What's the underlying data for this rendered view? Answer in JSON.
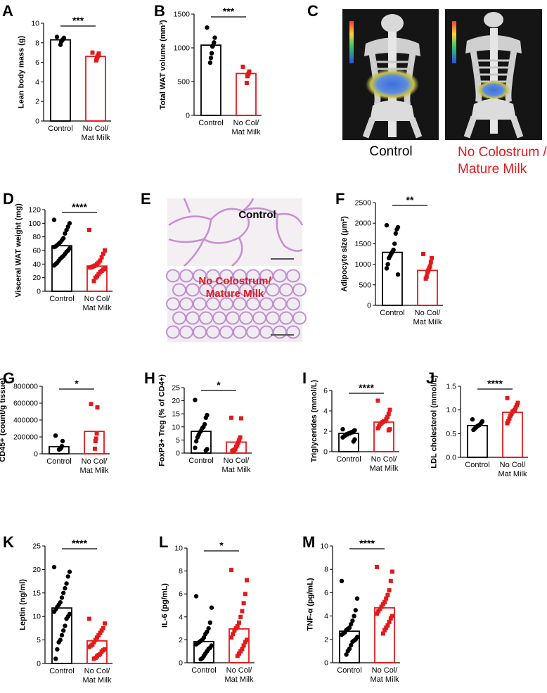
{
  "colors": {
    "control": "#000000",
    "treated": "#e31a1c"
  },
  "panel_c": {
    "letter": "C",
    "control_caption": "Control",
    "treated_caption": [
      "No Colostrum /",
      "Mature Milk"
    ]
  },
  "panel_e": {
    "letter": "E",
    "control_label": "Control",
    "treated_label": [
      "No Colostrum/",
      "Mature Milk"
    ]
  },
  "chart_data": [
    {
      "id": "A",
      "letter": "A",
      "type": "bar",
      "categories": [
        [
          "Control"
        ],
        [
          "No Col/",
          "Mat Milk"
        ]
      ],
      "ylabel": "Lean body mass  (g)",
      "ylim": [
        0,
        10
      ],
      "yticks": [
        0,
        2,
        4,
        6,
        8,
        10
      ],
      "tick_labels": [
        "0",
        "2",
        "4",
        "6",
        "8",
        "10"
      ],
      "means": [
        8.3,
        6.6
      ],
      "significance": "***",
      "points": [
        [
          8.6,
          8.5,
          8.4,
          8.3,
          8.2,
          8.1,
          7.8
        ],
        [
          7.0,
          6.9,
          6.7,
          6.6,
          6.4,
          6.2
        ]
      ],
      "markers": [
        "circle",
        "square"
      ]
    },
    {
      "id": "B",
      "letter": "B",
      "type": "bar",
      "categories": [
        [
          "Control"
        ],
        [
          "No Col/",
          "Mat Milk"
        ]
      ],
      "ylabel": "Total WAT volume  (mm³)",
      "ylim": [
        0,
        1500
      ],
      "yticks": [
        0,
        500,
        1000,
        1500
      ],
      "tick_labels": [
        "0",
        "500",
        "1000",
        "1500"
      ],
      "means": [
        1040,
        620
      ],
      "significance": "***",
      "points": [
        [
          1300,
          1150,
          1080,
          1040,
          1020,
          920,
          850,
          780
        ],
        [
          720,
          650,
          620,
          600,
          580,
          480
        ]
      ],
      "markers": [
        "circle",
        "square"
      ]
    },
    {
      "id": "D",
      "letter": "D",
      "type": "bar",
      "categories": [
        [
          "Control"
        ],
        [
          "No Col/",
          "Mat Milk"
        ]
      ],
      "ylabel": "Visceral WAT weight (mg)",
      "ylim": [
        0,
        120
      ],
      "yticks": [
        0,
        20,
        40,
        60,
        80,
        100,
        120
      ],
      "tick_labels": [
        "0",
        "20",
        "40",
        "60",
        "80",
        "100",
        "120"
      ],
      "means": [
        67,
        37
      ],
      "significance": "****",
      "points": [
        [
          105,
          100,
          95,
          90,
          85,
          78,
          75,
          72,
          70,
          68,
          66,
          65,
          63,
          60,
          58,
          55,
          52,
          50,
          48,
          45,
          42,
          40,
          38
        ],
        [
          90,
          60,
          55,
          50,
          45,
          42,
          40,
          38,
          37,
          36,
          35,
          35,
          33,
          32,
          30,
          28,
          25,
          22,
          20,
          15
        ]
      ],
      "markers": [
        "circle",
        "square"
      ]
    },
    {
      "id": "F",
      "letter": "F",
      "type": "bar",
      "categories": [
        [
          "Control"
        ],
        [
          "No Col/",
          "Mat Milk"
        ]
      ],
      "ylabel": "Adipocyte size (μm²)",
      "ylim": [
        0,
        2500
      ],
      "yticks": [
        0,
        500,
        1000,
        1500,
        2000,
        2500
      ],
      "tick_labels": [
        "0",
        "500",
        "1000",
        "1500",
        "2000",
        "2500"
      ],
      "means": [
        1290,
        850
      ],
      "significance": "**",
      "points": [
        [
          1950,
          1900,
          1850,
          1750,
          1500,
          1350,
          1300,
          1250,
          1200,
          1150,
          1000,
          900,
          750
        ],
        [
          1250,
          1150,
          1050,
          950,
          900,
          850,
          800,
          700,
          650
        ]
      ],
      "markers": [
        "circle",
        "square"
      ]
    },
    {
      "id": "G",
      "letter": "G",
      "type": "bar",
      "categories": [
        [
          "Control"
        ],
        [
          "No Col/",
          "Mat Milk"
        ]
      ],
      "ylabel": "CD45+ (count/g tissue)",
      "ylim": [
        0,
        800000
      ],
      "yticks": [
        0,
        200000,
        400000,
        600000,
        800000
      ],
      "tick_labels": [
        "0",
        "200000",
        "400000",
        "600000",
        "800000"
      ],
      "means": [
        85000,
        265000
      ],
      "significance": "*",
      "points": [
        [
          215000,
          150000,
          90000,
          70000,
          60000,
          55000,
          50000
        ],
        [
          590000,
          550000,
          240000,
          180000,
          150000,
          60000
        ]
      ],
      "markers": [
        "circle",
        "square"
      ]
    },
    {
      "id": "H",
      "letter": "H",
      "type": "bar",
      "categories": [
        [
          "Control"
        ],
        [
          "No Col/",
          "Mat Milk"
        ]
      ],
      "ylabel": "FoxP3+ Treg (% of CD4+)",
      "ylim": [
        0,
        25
      ],
      "yticks": [
        0,
        5,
        10,
        15,
        20,
        25
      ],
      "tick_labels": [
        "0",
        "5",
        "10",
        "15",
        "20",
        "25"
      ],
      "means": [
        8.3,
        4.2
      ],
      "significance": "*",
      "points": [
        [
          20.3,
          14.5,
          13.5,
          11,
          10,
          9.5,
          8.5,
          8,
          7,
          6,
          4.5,
          2,
          1.5,
          1
        ],
        [
          13.5,
          13.3,
          6,
          5,
          4,
          3,
          2.5,
          1.5,
          1.2,
          1,
          0.8
        ]
      ],
      "markers": [
        "circle",
        "square"
      ]
    },
    {
      "id": "I",
      "letter": "I",
      "type": "bar",
      "categories": [
        [
          "Control"
        ],
        [
          "No Col/",
          "Mat Milk"
        ]
      ],
      "ylabel": "Triglycerides (mmol/L)",
      "ylim": [
        0,
        6
      ],
      "yticks": [
        0,
        2,
        4,
        6
      ],
      "tick_labels": [
        "0",
        "2",
        "4",
        "6"
      ],
      "means": [
        1.8,
        2.9
      ],
      "significance": "****",
      "points": [
        [
          2.2,
          2.1,
          2.0,
          1.9,
          1.9,
          1.8,
          1.8,
          1.7,
          1.7,
          1.6,
          1.5,
          1.4,
          1.2,
          1.0
        ],
        [
          5.0,
          4.1,
          3.7,
          3.4,
          3.2,
          3.0,
          3.0,
          2.9,
          2.8,
          2.7,
          2.5,
          2.3,
          2.2,
          2.1
        ]
      ],
      "markers": [
        "circle",
        "square"
      ]
    },
    {
      "id": "J",
      "letter": "J",
      "type": "bar",
      "categories": [
        [
          "Control"
        ],
        [
          "No Col/",
          "Mat Milk"
        ]
      ],
      "ylabel": "LDL cholesterol (mmol/L)",
      "ylim": [
        0,
        1.5
      ],
      "yticks": [
        0,
        0.5,
        1.0,
        1.5
      ],
      "tick_labels": [
        "0.0",
        "0.5",
        "1.0",
        "1.5"
      ],
      "means": [
        0.67,
        0.95
      ],
      "significance": "****",
      "points": [
        [
          0.8,
          0.76,
          0.73,
          0.7,
          0.68,
          0.67,
          0.66,
          0.64,
          0.62,
          0.6,
          0.58
        ],
        [
          1.25,
          1.15,
          1.1,
          1.05,
          1.0,
          0.98,
          0.96,
          0.92,
          0.88,
          0.82,
          0.76,
          0.72
        ]
      ],
      "markers": [
        "circle",
        "square"
      ]
    },
    {
      "id": "K",
      "letter": "K",
      "type": "bar",
      "categories": [
        [
          "Control"
        ],
        [
          "No Col/",
          "Mat Milk"
        ]
      ],
      "ylabel": "Leptin (ng/ml)",
      "ylim": [
        0,
        25
      ],
      "yticks": [
        0,
        5,
        10,
        15,
        20,
        25
      ],
      "tick_labels": [
        "0",
        "5",
        "10",
        "15",
        "20",
        "25"
      ],
      "means": [
        11.8,
        4.8
      ],
      "significance": "****",
      "points": [
        [
          20.5,
          19.5,
          18.5,
          17,
          16,
          15,
          14,
          13,
          12.5,
          12,
          11.5,
          11,
          10.5,
          10,
          9.5,
          8,
          7,
          6,
          5,
          4.5,
          3,
          1
        ],
        [
          9.5,
          8.5,
          7.5,
          7,
          6.5,
          6,
          5.5,
          5,
          4.5,
          4,
          3.8,
          3.5,
          3,
          2.8,
          2.5,
          2,
          1.8,
          1.5,
          1.2,
          1
        ]
      ],
      "markers": [
        "circle",
        "square"
      ]
    },
    {
      "id": "L",
      "letter": "L",
      "type": "bar",
      "categories": [
        [
          "Control"
        ],
        [
          "No Col/",
          "Mat Milk"
        ]
      ],
      "ylabel": "IL-6 (pg/mL)",
      "ylim": [
        0,
        10
      ],
      "yticks": [
        0,
        2,
        4,
        6,
        8,
        10
      ],
      "tick_labels": [
        "0",
        "2",
        "4",
        "6",
        "8",
        "10"
      ],
      "means": [
        1.85,
        2.95
      ],
      "significance": "*",
      "points": [
        [
          5.8,
          4.8,
          3.5,
          3.0,
          2.7,
          2.5,
          2.2,
          2.0,
          1.9,
          1.8,
          1.7,
          1.6,
          1.5,
          1.3,
          1.2,
          1.0,
          0.8,
          0.6,
          0.4,
          0.3
        ],
        [
          8.1,
          7.2,
          6.0,
          5.2,
          4.5,
          4.0,
          3.5,
          3.2,
          3.0,
          2.8,
          2.5,
          2.2,
          2.0,
          1.8,
          1.5,
          1.2,
          1.0,
          0.8,
          0.6
        ]
      ],
      "markers": [
        "circle",
        "square"
      ]
    },
    {
      "id": "M",
      "letter": "M",
      "type": "bar",
      "categories": [
        [
          "Control"
        ],
        [
          "No Col/",
          "Mat Milk"
        ]
      ],
      "ylabel": "TNF-α (pg/mL)",
      "ylim": [
        0,
        10
      ],
      "yticks": [
        0,
        2,
        4,
        6,
        8,
        10
      ],
      "tick_labels": [
        "0",
        "2",
        "4",
        "6",
        "8",
        "10"
      ],
      "means": [
        2.7,
        4.7
      ],
      "significance": "****",
      "points": [
        [
          7.0,
          5.5,
          4.5,
          4.0,
          3.6,
          3.3,
          3.0,
          2.9,
          2.8,
          2.6,
          2.5,
          2.4,
          2.2,
          2.0,
          1.9,
          1.8,
          1.5,
          1.2,
          1.0,
          0.7
        ],
        [
          8.2,
          7.8,
          7.0,
          6.2,
          5.8,
          5.5,
          5.2,
          5.0,
          4.8,
          4.6,
          4.4,
          4.2,
          4.0,
          3.8,
          3.5,
          3.2,
          3.0,
          2.8,
          2.5
        ]
      ],
      "markers": [
        "circle",
        "square"
      ]
    }
  ]
}
